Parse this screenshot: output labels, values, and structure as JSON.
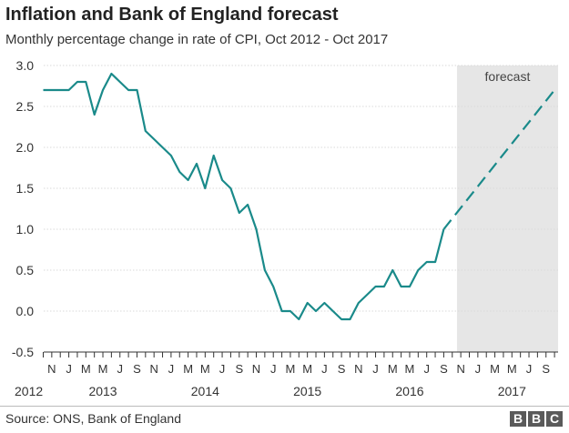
{
  "header": {
    "title": "Inflation and Bank of England forecast",
    "subtitle": "Monthly percentage change in rate of CPI, Oct 2012 - Oct 2017"
  },
  "footer": {
    "source": "Source: ONS, Bank of England",
    "logo_letters": [
      "B",
      "B",
      "C"
    ]
  },
  "colors": {
    "line": "#1a8a8a",
    "forecast_band": "#e6e6e6",
    "grid": "#d9d9d9",
    "axis": "#333333",
    "logo": "#5a5a5a"
  },
  "chart_data": {
    "type": "line",
    "title": "Inflation and Bank of England forecast",
    "subtitle": "Monthly percentage change in rate of CPI, Oct 2012 - Oct 2017",
    "ylim": [
      -0.5,
      3.0
    ],
    "yticks": [
      -0.5,
      0.0,
      0.5,
      1.0,
      1.5,
      2.0,
      2.5,
      3.0
    ],
    "ytick_labels": [
      "-0.5",
      "0.0",
      "0.5",
      "1.0",
      "1.5",
      "2.0",
      "2.5",
      "3.0"
    ],
    "x_range": [
      "2012-10",
      "2017-10"
    ],
    "grid": "horizontal",
    "forecast_region": {
      "label": "forecast",
      "start": "2016-11",
      "end": "2017-10"
    },
    "month_tick_labels": [
      {
        "month": "2012-11",
        "label": "N"
      },
      {
        "month": "2013-01",
        "label": "J"
      },
      {
        "month": "2013-03",
        "label": "M"
      },
      {
        "month": "2013-05",
        "label": "M"
      },
      {
        "month": "2013-07",
        "label": "J"
      },
      {
        "month": "2013-09",
        "label": "S"
      },
      {
        "month": "2013-11",
        "label": "N"
      },
      {
        "month": "2014-01",
        "label": "J"
      },
      {
        "month": "2014-03",
        "label": "M"
      },
      {
        "month": "2014-05",
        "label": "M"
      },
      {
        "month": "2014-07",
        "label": "J"
      },
      {
        "month": "2014-09",
        "label": "S"
      },
      {
        "month": "2014-11",
        "label": "N"
      },
      {
        "month": "2015-01",
        "label": "J"
      },
      {
        "month": "2015-03",
        "label": "M"
      },
      {
        "month": "2015-05",
        "label": "M"
      },
      {
        "month": "2015-07",
        "label": "J"
      },
      {
        "month": "2015-09",
        "label": "S"
      },
      {
        "month": "2015-11",
        "label": "N"
      },
      {
        "month": "2016-01",
        "label": "J"
      },
      {
        "month": "2016-03",
        "label": "M"
      },
      {
        "month": "2016-05",
        "label": "M"
      },
      {
        "month": "2016-07",
        "label": "J"
      },
      {
        "month": "2016-09",
        "label": "S"
      },
      {
        "month": "2016-11",
        "label": "N"
      },
      {
        "month": "2017-01",
        "label": "J"
      },
      {
        "month": "2017-03",
        "label": "M"
      },
      {
        "month": "2017-05",
        "label": "M"
      },
      {
        "month": "2017-07",
        "label": "J"
      },
      {
        "month": "2017-09",
        "label": "S"
      }
    ],
    "year_labels": [
      {
        "month": "2012-10",
        "label": "2012"
      },
      {
        "month": "2013-05",
        "label": "2013"
      },
      {
        "month": "2014-05",
        "label": "2014"
      },
      {
        "month": "2015-05",
        "label": "2015"
      },
      {
        "month": "2016-05",
        "label": "2016"
      },
      {
        "month": "2017-05",
        "label": "2017"
      }
    ],
    "series": [
      {
        "style": "solid",
        "points": [
          [
            "2012-10",
            2.7
          ],
          [
            "2012-11",
            2.7
          ],
          [
            "2012-12",
            2.7
          ],
          [
            "2013-01",
            2.7
          ],
          [
            "2013-02",
            2.8
          ],
          [
            "2013-03",
            2.8
          ],
          [
            "2013-04",
            2.4
          ],
          [
            "2013-05",
            2.7
          ],
          [
            "2013-06",
            2.9
          ],
          [
            "2013-07",
            2.8
          ],
          [
            "2013-08",
            2.7
          ],
          [
            "2013-09",
            2.7
          ],
          [
            "2013-10",
            2.2
          ],
          [
            "2013-11",
            2.1
          ],
          [
            "2013-12",
            2.0
          ],
          [
            "2014-01",
            1.9
          ],
          [
            "2014-02",
            1.7
          ],
          [
            "2014-03",
            1.6
          ],
          [
            "2014-04",
            1.8
          ],
          [
            "2014-05",
            1.5
          ],
          [
            "2014-06",
            1.9
          ],
          [
            "2014-07",
            1.6
          ],
          [
            "2014-08",
            1.5
          ],
          [
            "2014-09",
            1.2
          ],
          [
            "2014-10",
            1.3
          ],
          [
            "2014-11",
            1.0
          ],
          [
            "2014-12",
            0.5
          ],
          [
            "2015-01",
            0.3
          ],
          [
            "2015-02",
            0.0
          ],
          [
            "2015-03",
            0.0
          ],
          [
            "2015-04",
            -0.1
          ],
          [
            "2015-05",
            0.1
          ],
          [
            "2015-06",
            0.0
          ],
          [
            "2015-07",
            0.1
          ],
          [
            "2015-08",
            0.0
          ],
          [
            "2015-09",
            -0.1
          ],
          [
            "2015-10",
            -0.1
          ],
          [
            "2015-11",
            0.1
          ],
          [
            "2015-12",
            0.2
          ],
          [
            "2016-01",
            0.3
          ],
          [
            "2016-02",
            0.3
          ],
          [
            "2016-03",
            0.5
          ],
          [
            "2016-04",
            0.3
          ],
          [
            "2016-05",
            0.3
          ],
          [
            "2016-06",
            0.5
          ],
          [
            "2016-07",
            0.6
          ],
          [
            "2016-08",
            0.6
          ],
          [
            "2016-09",
            1.0
          ]
        ]
      },
      {
        "style": "dashed",
        "points": [
          [
            "2016-09",
            1.0
          ],
          [
            "2017-10",
            2.7
          ]
        ]
      }
    ]
  }
}
